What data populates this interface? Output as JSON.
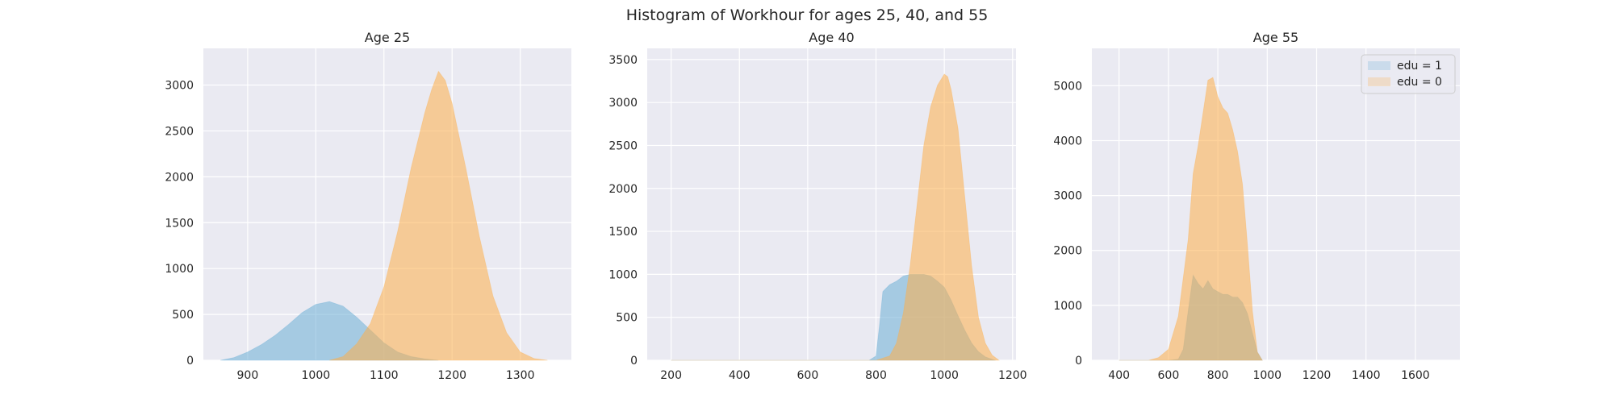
{
  "figure": {
    "title": "Histogram of Workhour for ages 25, 40, and 55"
  },
  "colors": {
    "panel_bg": "#eaeaf2",
    "grid": "#ffffff",
    "edu1": "#6baed6",
    "edu0": "#fdae4b",
    "text": "#262626"
  },
  "chart_data": [
    {
      "type": "histogram",
      "title": "Age 25",
      "xlim": [
        835,
        1375
      ],
      "ylim": [
        0,
        3400
      ],
      "xticks": [
        900,
        1000,
        1100,
        1200,
        1300
      ],
      "yticks": [
        0,
        500,
        1000,
        1500,
        2000,
        2500,
        3000
      ],
      "grid": true,
      "legend": null,
      "series": [
        {
          "name": "edu = 1",
          "bins": [
            [
              860,
              0
            ],
            [
              880,
              30
            ],
            [
              900,
              90
            ],
            [
              920,
              170
            ],
            [
              940,
              270
            ],
            [
              960,
              390
            ],
            [
              980,
              520
            ],
            [
              1000,
              610
            ],
            [
              1020,
              640
            ],
            [
              1040,
              590
            ],
            [
              1060,
              470
            ],
            [
              1080,
              330
            ],
            [
              1100,
              190
            ],
            [
              1120,
              90
            ],
            [
              1140,
              40
            ],
            [
              1160,
              15
            ],
            [
              1180,
              0
            ]
          ]
        },
        {
          "name": "edu = 0",
          "bins": [
            [
              1020,
              0
            ],
            [
              1040,
              40
            ],
            [
              1060,
              180
            ],
            [
              1080,
              400
            ],
            [
              1100,
              800
            ],
            [
              1120,
              1400
            ],
            [
              1140,
              2100
            ],
            [
              1160,
              2700
            ],
            [
              1170,
              2950
            ],
            [
              1180,
              3150
            ],
            [
              1190,
              3050
            ],
            [
              1200,
              2800
            ],
            [
              1220,
              2100
            ],
            [
              1240,
              1350
            ],
            [
              1260,
              700
            ],
            [
              1280,
              300
            ],
            [
              1300,
              90
            ],
            [
              1320,
              20
            ],
            [
              1340,
              0
            ]
          ]
        }
      ]
    },
    {
      "type": "histogram",
      "title": "Age 40",
      "xlim": [
        130,
        1210
      ],
      "ylim": [
        0,
        3630
      ],
      "xticks": [
        200,
        400,
        600,
        800,
        1000,
        1200
      ],
      "yticks": [
        0,
        500,
        1000,
        1500,
        2000,
        2500,
        3000,
        3500
      ],
      "grid": true,
      "legend": null,
      "series": [
        {
          "name": "edu = 1",
          "bins": [
            [
              200,
              0
            ],
            [
              780,
              0
            ],
            [
              800,
              50
            ],
            [
              810,
              400
            ],
            [
              820,
              800
            ],
            [
              840,
              880
            ],
            [
              860,
              920
            ],
            [
              880,
              980
            ],
            [
              900,
              1000
            ],
            [
              920,
              1000
            ],
            [
              940,
              1000
            ],
            [
              960,
              980
            ],
            [
              980,
              920
            ],
            [
              1000,
              850
            ],
            [
              1020,
              700
            ],
            [
              1040,
              520
            ],
            [
              1060,
              350
            ],
            [
              1080,
              200
            ],
            [
              1100,
              100
            ],
            [
              1120,
              40
            ],
            [
              1140,
              10
            ],
            [
              1150,
              0
            ]
          ]
        },
        {
          "name": "edu = 0",
          "bins": [
            [
              200,
              0
            ],
            [
              800,
              0
            ],
            [
              840,
              50
            ],
            [
              860,
              200
            ],
            [
              880,
              550
            ],
            [
              900,
              1100
            ],
            [
              920,
              1800
            ],
            [
              940,
              2500
            ],
            [
              960,
              2950
            ],
            [
              980,
              3200
            ],
            [
              1000,
              3330
            ],
            [
              1010,
              3300
            ],
            [
              1020,
              3150
            ],
            [
              1040,
              2700
            ],
            [
              1060,
              1900
            ],
            [
              1080,
              1100
            ],
            [
              1100,
              500
            ],
            [
              1120,
              200
            ],
            [
              1140,
              60
            ],
            [
              1160,
              0
            ]
          ]
        }
      ]
    },
    {
      "type": "histogram",
      "title": "Age 55",
      "xlim": [
        290,
        1780
      ],
      "ylim": [
        0,
        5680
      ],
      "xticks": [
        400,
        600,
        800,
        1000,
        1200,
        1400,
        1600
      ],
      "yticks": [
        0,
        1000,
        2000,
        3000,
        4000,
        5000
      ],
      "grid": true,
      "legend": "top-right",
      "series": [
        {
          "name": "edu = 1",
          "bins": [
            [
              400,
              0
            ],
            [
              600,
              0
            ],
            [
              640,
              20
            ],
            [
              660,
              200
            ],
            [
              680,
              900
            ],
            [
              700,
              1550
            ],
            [
              720,
              1400
            ],
            [
              740,
              1300
            ],
            [
              760,
              1450
            ],
            [
              780,
              1300
            ],
            [
              800,
              1250
            ],
            [
              820,
              1200
            ],
            [
              840,
              1200
            ],
            [
              860,
              1150
            ],
            [
              880,
              1150
            ],
            [
              900,
              1050
            ],
            [
              920,
              850
            ],
            [
              940,
              500
            ],
            [
              960,
              150
            ],
            [
              980,
              0
            ]
          ]
        },
        {
          "name": "edu = 0",
          "bins": [
            [
              400,
              0
            ],
            [
              520,
              0
            ],
            [
              560,
              50
            ],
            [
              600,
              200
            ],
            [
              640,
              800
            ],
            [
              680,
              2200
            ],
            [
              700,
              3400
            ],
            [
              720,
              3900
            ],
            [
              740,
              4500
            ],
            [
              760,
              5100
            ],
            [
              780,
              5150
            ],
            [
              800,
              4800
            ],
            [
              820,
              4600
            ],
            [
              840,
              4500
            ],
            [
              860,
              4200
            ],
            [
              880,
              3800
            ],
            [
              900,
              3200
            ],
            [
              920,
              2100
            ],
            [
              940,
              900
            ],
            [
              960,
              150
            ],
            [
              980,
              0
            ]
          ]
        }
      ]
    }
  ]
}
